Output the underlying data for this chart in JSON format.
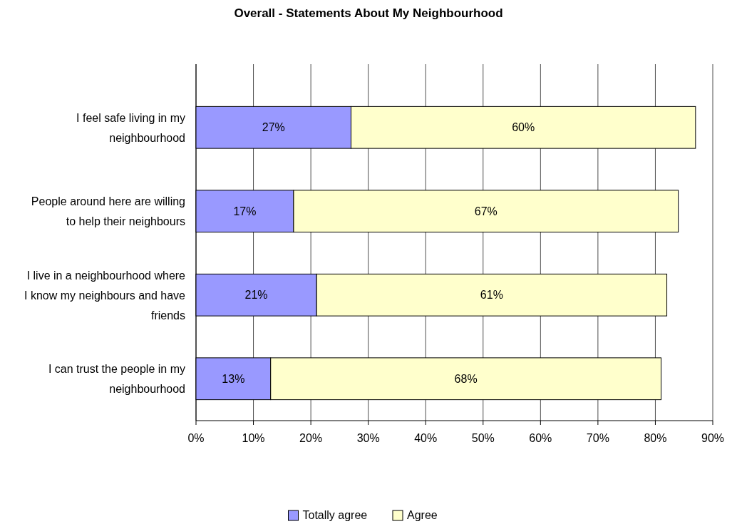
{
  "chart_data": {
    "type": "bar",
    "orientation": "horizontal",
    "stacked": true,
    "title": "Overall - Statements About My Neighbourhood",
    "categories": [
      "I feel safe living in my neighbourhood",
      "People around here are willing to help their neighbours",
      "I live in a neighbourhood where I know my neighbours and have friends",
      "I can trust the people in my neighbourhood"
    ],
    "series": [
      {
        "name": "Totally agree",
        "color": "#9999ff",
        "values": [
          27,
          17,
          21,
          13
        ]
      },
      {
        "name": "Agree",
        "color": "#ffffcc",
        "values": [
          60,
          67,
          61,
          68
        ]
      }
    ],
    "xlim": [
      0,
      90
    ],
    "xticks": [
      {
        "value": 0,
        "label": "0%"
      },
      {
        "value": 10,
        "label": "10%"
      },
      {
        "value": 20,
        "label": "20%"
      },
      {
        "value": 30,
        "label": "30%"
      },
      {
        "value": 40,
        "label": "40%"
      },
      {
        "value": 50,
        "label": "50%"
      },
      {
        "value": 60,
        "label": "60%"
      },
      {
        "value": 70,
        "label": "70%"
      },
      {
        "value": 80,
        "label": "80%"
      },
      {
        "value": 90,
        "label": "90%"
      }
    ],
    "value_labels": [
      [
        "27%",
        "17%",
        "21%",
        "13%"
      ],
      [
        "60%",
        "67%",
        "61%",
        "68%"
      ]
    ],
    "grid": "x",
    "legend": "bottom"
  }
}
